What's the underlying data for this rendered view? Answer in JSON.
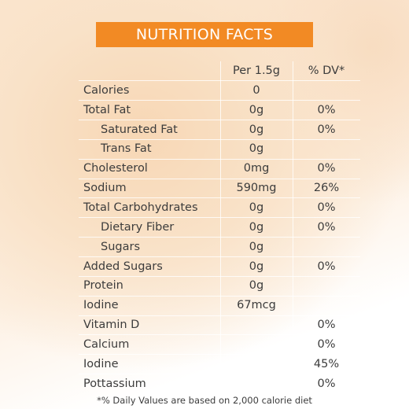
{
  "header": {
    "title": "NUTRITION FACTS"
  },
  "table": {
    "columns": [
      "Per 1.5g",
      "% DV*"
    ],
    "rows": [
      {
        "label": "Calories",
        "amount": "0",
        "dv": null
      },
      {
        "label": "Total Fat",
        "amount": "0g",
        "dv": "0%",
        "items": [
          {
            "label": "Saturated Fat",
            "amount": "0g",
            "dv": "0%"
          },
          {
            "label": "Trans Fat",
            "amount": "0g",
            "dv": null
          }
        ]
      },
      {
        "label": "Cholesterol",
        "amount": "0mg",
        "dv": "0%"
      },
      {
        "label": "Sodium",
        "amount": "590mg",
        "dv": "26%"
      },
      {
        "label": "Total Carbohydrates",
        "amount": "0g",
        "dv": "0%",
        "items": [
          {
            "label": "Dietary Fiber",
            "amount": "0g",
            "dv": "0%"
          },
          {
            "label": "Sugars",
            "amount": "0g",
            "dv": null
          }
        ]
      },
      {
        "label": "Added Sugars",
        "amount": "0g",
        "dv": "0%"
      },
      {
        "label": "Protein",
        "amount": "0g",
        "dv": null
      },
      {
        "label": "Iodine",
        "amount": "67mcg",
        "dv": null
      },
      {
        "label": "Vitamin D",
        "amount": null,
        "dv": "0%"
      },
      {
        "label": "Calcium",
        "amount": null,
        "dv": "0%"
      },
      {
        "label": "Iodine",
        "amount": null,
        "dv": "45%"
      },
      {
        "label": "Pottassium",
        "amount": null,
        "dv": "0%"
      }
    ]
  },
  "footnote": "*% Daily Values are based on 2,000 calorie diet"
}
